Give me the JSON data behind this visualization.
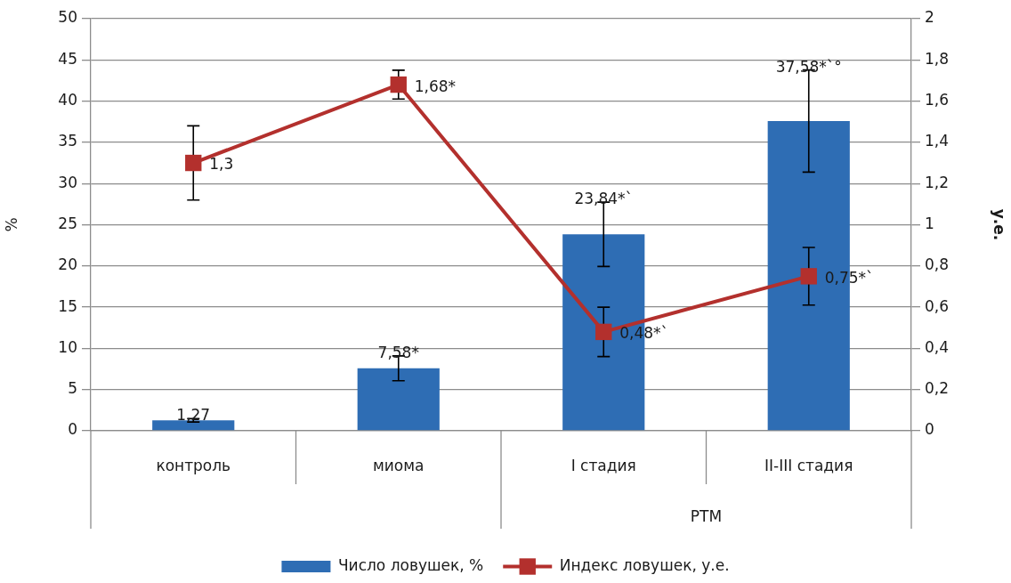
{
  "chart_data": {
    "type": "bar",
    "categories": [
      "контроль",
      "миома",
      "I стадия",
      "II-III стадия"
    ],
    "ylabel": "%",
    "y2label": "у.е.",
    "ylim": [
      0,
      50
    ],
    "yticks": [
      0,
      5,
      10,
      15,
      20,
      25,
      30,
      35,
      40,
      45,
      50
    ],
    "y2lim": [
      0,
      2
    ],
    "y2ticks": [
      0,
      {
        "value": 0.2,
        "label": "0,2"
      },
      {
        "value": 0.4,
        "label": "0,4"
      },
      {
        "value": 0.6,
        "label": "0,6"
      },
      {
        "value": 0.8,
        "label": "0,8"
      },
      1,
      {
        "value": 1.2,
        "label": "1,2"
      },
      {
        "value": 1.4,
        "label": "1,4"
      },
      {
        "value": 1.6,
        "label": "1,6"
      },
      {
        "value": 1.8,
        "label": "1,8"
      },
      2
    ],
    "series": [
      {
        "name": "Число ловушек, %",
        "color": "#2e6db4",
        "values": [
          1.27,
          7.58,
          23.84,
          37.58
        ],
        "errors": [
          0.2,
          1.5,
          3.9,
          6.2
        ],
        "value_labels": [
          "1,27",
          "7,58*",
          "23,84*`",
          "37,58*`°"
        ]
      },
      {
        "name": "Индекс ловушек, у.е.",
        "type": "line",
        "axis": "y2",
        "color": "#b3302d",
        "marker": "square",
        "values": [
          1.3,
          1.68,
          0.48,
          0.75
        ],
        "errors": [
          0.18,
          0.07,
          0.12,
          0.14
        ],
        "value_labels": [
          "1,3",
          "1,68*",
          "0,48*`",
          "0,75*`"
        ]
      }
    ],
    "annotations": [
      "РТМ"
    ],
    "grid": "y",
    "legend": "bottom"
  }
}
